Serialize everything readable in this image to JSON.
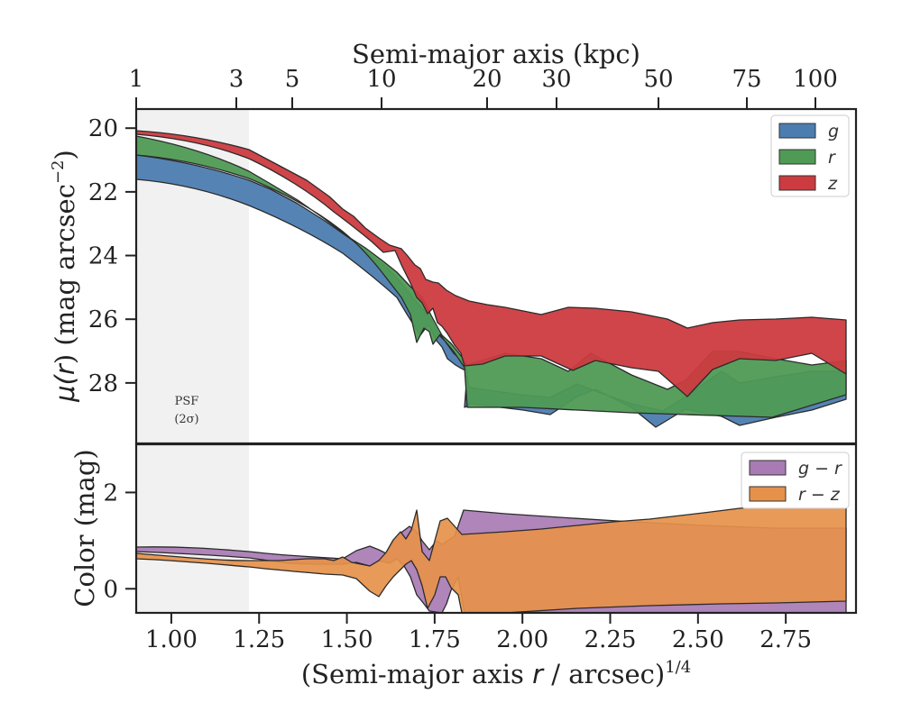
{
  "top_axis": {
    "label": "Semi-major axis (kpc)",
    "ticks": [
      "1",
      "3",
      "5",
      "10",
      "20",
      "30",
      "50",
      "75",
      "100"
    ]
  },
  "bottom_axis": {
    "label_main": "(Semi-major axis ",
    "label_var": "r",
    "label_tail": " / arcsec)",
    "label_sup": "1/4",
    "ticks": [
      "1.00",
      "1.25",
      "1.50",
      "1.75",
      "2.00",
      "2.25",
      "2.50",
      "2.75"
    ]
  },
  "psf": {
    "line1": "PSF",
    "line2": "(2σ)"
  },
  "chart_data": [
    {
      "type": "area",
      "panel": "surface-brightness",
      "xlabel": "(Semi-major axis r / arcsec)^1/4",
      "ylabel_prefix": "μ(",
      "ylabel_var": "r",
      "ylabel_mid": ") (mag arcsec",
      "ylabel_sup": "−2",
      "ylabel_suffix": ")",
      "yticks": [
        "20",
        "22",
        "24",
        "26",
        "28"
      ],
      "x_ticks_values": [
        1.0,
        1.25,
        1.5,
        1.75,
        2.0,
        2.25,
        2.5,
        2.75
      ],
      "xlim": [
        0.9,
        2.95
      ],
      "ylim": [
        29.9,
        19.4
      ],
      "y_inverted": true,
      "legend_position": "top-right",
      "series": [
        {
          "name": "g",
          "color": "#4c7db0"
        },
        {
          "name": "r",
          "color": "#4f9a55"
        },
        {
          "name": "z",
          "color": "#cc3b3f"
        }
      ]
    },
    {
      "type": "area",
      "panel": "color",
      "ylabel": "Color (mag)",
      "yticks": [
        "0",
        "2"
      ],
      "y_ticks_values": [
        0,
        2
      ],
      "xlim": [
        0.9,
        2.95
      ],
      "ylim": [
        -0.5,
        3.0
      ],
      "legend_position": "top-right",
      "series": [
        {
          "name": "g − r",
          "color": "#a87bb4"
        },
        {
          "name": "r − z",
          "color": "#e6914a"
        }
      ]
    }
  ]
}
